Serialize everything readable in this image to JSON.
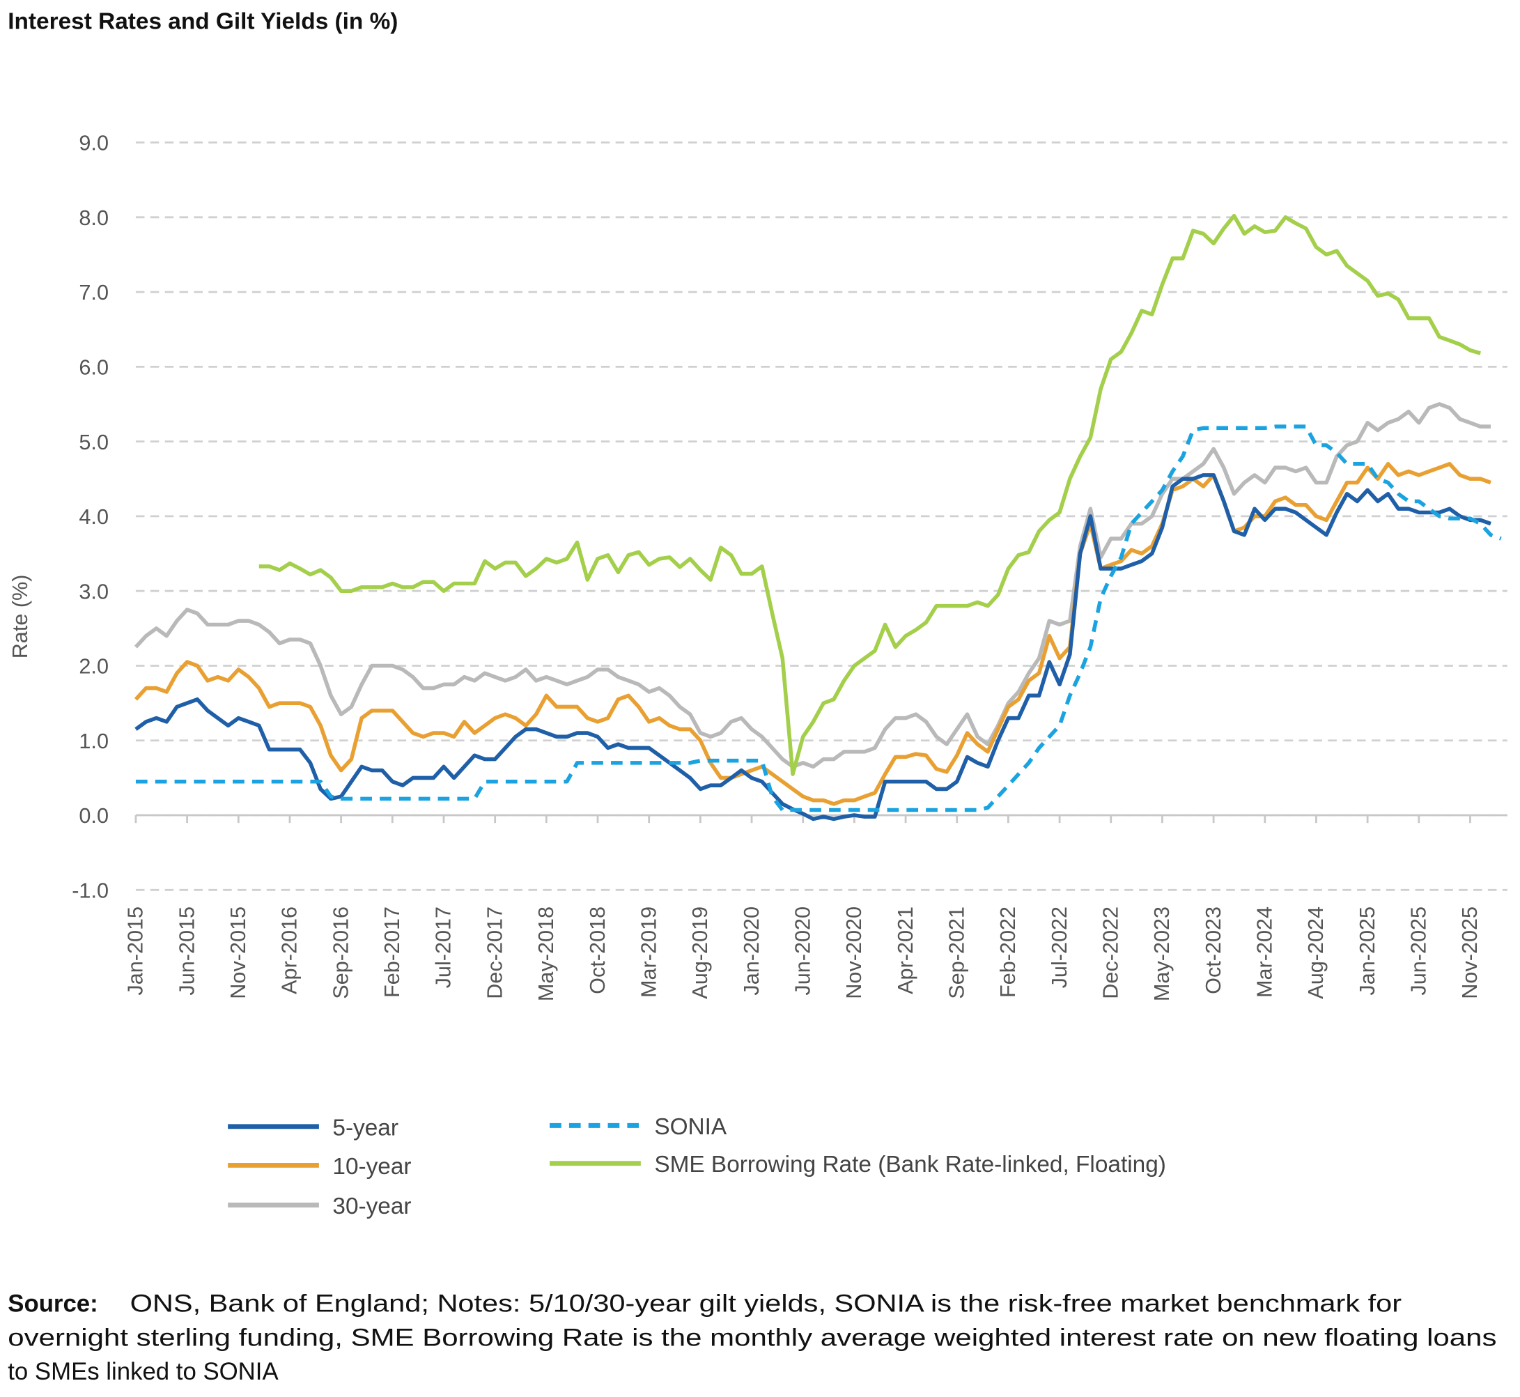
{
  "chart_data": {
    "type": "line",
    "title": "Interest Rates and Gilt Yields (in %)",
    "y_label": "Rate (%)",
    "categories": [
      "Jan-2015",
      null,
      null,
      null,
      null,
      "Jun-2015",
      null,
      null,
      null,
      null,
      "Nov-2015",
      null,
      null,
      null,
      null,
      "Apr-2016",
      null,
      null,
      null,
      null,
      "Sep-2016",
      null,
      null,
      null,
      null,
      "Feb-2017",
      null,
      null,
      null,
      null,
      "Jul-2017",
      null,
      null,
      null,
      null,
      "Dec-2017",
      null,
      null,
      null,
      null,
      "May-2018",
      null,
      null,
      null,
      null,
      "Oct-2018",
      null,
      null,
      null,
      null,
      "Mar-2019",
      null,
      null,
      null,
      null,
      "Aug-2019",
      null,
      null,
      null,
      null,
      "Jan-2020",
      null,
      null,
      null,
      null,
      "Jun-2020",
      null,
      null,
      null,
      null,
      "Nov-2020",
      null,
      null,
      null,
      null,
      "Apr-2021",
      null,
      null,
      null,
      null,
      "Sep-2021",
      null,
      null,
      null,
      null,
      "Feb-2022",
      null,
      null,
      null,
      null,
      "Jul-2022",
      null,
      null,
      null,
      null,
      "Dec-2022",
      null,
      null,
      null,
      null,
      "May-2023",
      null,
      null,
      null,
      null,
      "Oct-2023",
      null,
      null,
      null,
      null,
      "Mar-2024",
      null,
      null,
      null,
      null,
      "Aug-2024",
      null,
      null,
      null,
      null,
      "Jan-2025",
      null,
      null,
      null,
      null,
      "Jun-2025",
      null,
      null,
      null,
      null,
      "Nov-2025",
      null,
      null,
      null
    ],
    "series": [
      {
        "name": "5-year",
        "color": "#1f5fa8",
        "dashed": false,
        "values": [
          1.15,
          1.25,
          1.3,
          1.25,
          1.45,
          1.5,
          1.55,
          1.4,
          1.3,
          1.2,
          1.3,
          1.25,
          1.2,
          0.88,
          0.88,
          0.88,
          0.88,
          0.7,
          0.35,
          0.22,
          0.25,
          0.45,
          0.65,
          0.6,
          0.6,
          0.45,
          0.4,
          0.5,
          0.5,
          0.5,
          0.65,
          0.5,
          0.65,
          0.8,
          0.75,
          0.75,
          0.9,
          1.05,
          1.15,
          1.15,
          1.1,
          1.05,
          1.05,
          1.1,
          1.1,
          1.05,
          0.9,
          0.95,
          0.9,
          0.9,
          0.9,
          0.8,
          0.7,
          0.6,
          0.5,
          0.35,
          0.4,
          0.4,
          0.5,
          0.6,
          0.5,
          0.45,
          0.3,
          0.15,
          0.08,
          0.02,
          -0.05,
          -0.02,
          -0.05,
          -0.02,
          0.0,
          -0.02,
          -0.02,
          0.45,
          0.45,
          0.45,
          0.45,
          0.45,
          0.35,
          0.35,
          0.45,
          0.78,
          0.7,
          0.65,
          1.0,
          1.3,
          1.3,
          1.6,
          1.6,
          2.05,
          1.75,
          2.15,
          3.5,
          4.0,
          3.3,
          3.3,
          3.3,
          3.35,
          3.4,
          3.5,
          3.85,
          4.4,
          4.5,
          4.5,
          4.55,
          4.55,
          4.2,
          3.8,
          3.75,
          4.1,
          3.95,
          4.1,
          4.1,
          4.05,
          3.95,
          3.85,
          3.75,
          4.05,
          4.3,
          4.2,
          4.35,
          4.2,
          4.3,
          4.1,
          4.1,
          4.05,
          4.05,
          4.05,
          4.1,
          4.0,
          3.95,
          3.95,
          3.9,
          null
        ]
      },
      {
        "name": "10-year",
        "color": "#e9a033",
        "dashed": false,
        "values": [
          1.55,
          1.7,
          1.7,
          1.65,
          1.9,
          2.05,
          2.0,
          1.8,
          1.85,
          1.8,
          1.95,
          1.85,
          1.7,
          1.45,
          1.5,
          1.5,
          1.5,
          1.45,
          1.2,
          0.8,
          0.6,
          0.75,
          1.3,
          1.4,
          1.4,
          1.4,
          1.25,
          1.1,
          1.05,
          1.1,
          1.1,
          1.05,
          1.25,
          1.1,
          1.2,
          1.3,
          1.35,
          1.3,
          1.2,
          1.35,
          1.6,
          1.45,
          1.45,
          1.45,
          1.3,
          1.25,
          1.3,
          1.55,
          1.6,
          1.45,
          1.25,
          1.3,
          1.2,
          1.15,
          1.15,
          1.0,
          0.7,
          0.5,
          0.5,
          0.55,
          0.6,
          0.65,
          0.55,
          0.45,
          0.35,
          0.25,
          0.2,
          0.2,
          0.15,
          0.2,
          0.2,
          0.25,
          0.3,
          0.55,
          0.78,
          0.78,
          0.82,
          0.8,
          0.62,
          0.58,
          0.8,
          1.1,
          0.95,
          0.85,
          1.15,
          1.45,
          1.55,
          1.8,
          1.9,
          2.4,
          2.1,
          2.25,
          3.5,
          3.9,
          3.3,
          3.35,
          3.4,
          3.55,
          3.5,
          3.6,
          3.9,
          4.35,
          4.4,
          4.5,
          4.4,
          4.55,
          4.2,
          3.8,
          3.85,
          4.0,
          4.0,
          4.2,
          4.25,
          4.15,
          4.15,
          4.0,
          3.95,
          4.2,
          4.45,
          4.45,
          4.65,
          4.5,
          4.7,
          4.55,
          4.6,
          4.55,
          4.6,
          4.65,
          4.7,
          4.55,
          4.5,
          4.5,
          4.45,
          null
        ]
      },
      {
        "name": "30-year",
        "color": "#b9b9b9",
        "dashed": false,
        "values": [
          2.25,
          2.4,
          2.5,
          2.4,
          2.6,
          2.75,
          2.7,
          2.55,
          2.55,
          2.55,
          2.6,
          2.6,
          2.55,
          2.45,
          2.3,
          2.35,
          2.35,
          2.3,
          2.0,
          1.6,
          1.35,
          1.45,
          1.75,
          2.0,
          2.0,
          2.0,
          1.95,
          1.85,
          1.7,
          1.7,
          1.75,
          1.75,
          1.85,
          1.8,
          1.9,
          1.85,
          1.8,
          1.85,
          1.95,
          1.8,
          1.85,
          1.8,
          1.75,
          1.8,
          1.85,
          1.95,
          1.95,
          1.85,
          1.8,
          1.75,
          1.65,
          1.7,
          1.6,
          1.45,
          1.35,
          1.1,
          1.05,
          1.1,
          1.25,
          1.3,
          1.15,
          1.05,
          0.9,
          0.75,
          0.65,
          0.7,
          0.65,
          0.75,
          0.75,
          0.85,
          0.85,
          0.85,
          0.9,
          1.15,
          1.3,
          1.3,
          1.35,
          1.25,
          1.05,
          0.95,
          1.15,
          1.35,
          1.05,
          0.95,
          1.2,
          1.5,
          1.65,
          1.9,
          2.1,
          2.6,
          2.55,
          2.6,
          3.6,
          4.1,
          3.45,
          3.7,
          3.7,
          3.9,
          3.9,
          4.0,
          4.3,
          4.5,
          4.5,
          4.6,
          4.7,
          4.9,
          4.65,
          4.3,
          4.45,
          4.55,
          4.45,
          4.65,
          4.65,
          4.6,
          4.65,
          4.45,
          4.45,
          4.8,
          4.95,
          5.0,
          5.25,
          5.15,
          5.25,
          5.3,
          5.4,
          5.25,
          5.45,
          5.5,
          5.45,
          5.3,
          5.25,
          5.2,
          5.2,
          null
        ]
      },
      {
        "name": "SONIA",
        "color": "#1aa3e0",
        "dashed": true,
        "values": [
          0.45,
          0.45,
          0.45,
          0.45,
          0.45,
          0.45,
          0.45,
          0.45,
          0.45,
          0.45,
          0.45,
          0.45,
          0.45,
          0.45,
          0.45,
          0.45,
          0.45,
          0.45,
          0.45,
          0.25,
          0.22,
          0.22,
          0.22,
          0.22,
          0.22,
          0.22,
          0.22,
          0.22,
          0.22,
          0.22,
          0.22,
          0.22,
          0.22,
          0.22,
          0.45,
          0.45,
          0.45,
          0.45,
          0.45,
          0.45,
          0.45,
          0.45,
          0.45,
          0.7,
          0.7,
          0.7,
          0.7,
          0.7,
          0.7,
          0.7,
          0.7,
          0.7,
          0.7,
          0.7,
          0.7,
          0.73,
          0.73,
          0.73,
          0.73,
          0.73,
          0.73,
          0.73,
          0.25,
          0.07,
          0.07,
          0.07,
          0.07,
          0.07,
          0.07,
          0.07,
          0.07,
          0.07,
          0.07,
          0.07,
          0.07,
          0.07,
          0.07,
          0.07,
          0.07,
          0.07,
          0.07,
          0.07,
          0.07,
          0.1,
          0.25,
          0.4,
          0.55,
          0.7,
          0.9,
          1.05,
          1.2,
          1.6,
          1.9,
          2.25,
          2.9,
          3.2,
          3.45,
          3.9,
          4.05,
          4.2,
          4.35,
          4.6,
          4.8,
          5.15,
          5.18,
          5.18,
          5.18,
          5.18,
          5.18,
          5.18,
          5.18,
          5.2,
          5.2,
          5.2,
          5.2,
          4.95,
          4.95,
          4.85,
          4.7,
          4.7,
          4.7,
          4.5,
          4.45,
          4.3,
          4.2,
          4.2,
          4.1,
          4.0,
          3.97,
          3.97,
          3.97,
          3.9,
          3.75,
          3.7
        ]
      },
      {
        "name": "SME Borrowing Rate (Bank Rate-linked, Floating)",
        "color": "#a3cf4a",
        "dashed": false,
        "values": [
          null,
          null,
          null,
          null,
          null,
          null,
          null,
          null,
          null,
          null,
          null,
          null,
          3.33,
          3.33,
          3.28,
          3.37,
          3.3,
          3.22,
          3.28,
          3.18,
          3.0,
          3.0,
          3.05,
          3.05,
          3.05,
          3.1,
          3.05,
          3.05,
          3.12,
          3.12,
          3.0,
          3.1,
          3.1,
          3.1,
          3.4,
          3.3,
          3.38,
          3.38,
          3.2,
          3.3,
          3.43,
          3.38,
          3.43,
          3.65,
          3.15,
          3.43,
          3.48,
          3.25,
          3.48,
          3.52,
          3.35,
          3.43,
          3.45,
          3.32,
          3.43,
          3.28,
          3.15,
          3.58,
          3.48,
          3.23,
          3.23,
          3.33,
          2.7,
          2.1,
          0.55,
          1.05,
          1.25,
          1.5,
          1.55,
          1.8,
          2.0,
          2.1,
          2.2,
          2.55,
          2.25,
          2.4,
          2.48,
          2.58,
          2.8,
          2.8,
          2.8,
          2.8,
          2.85,
          2.8,
          2.95,
          3.3,
          3.48,
          3.52,
          3.8,
          3.95,
          4.05,
          4.5,
          4.8,
          5.05,
          5.7,
          6.1,
          6.2,
          6.45,
          6.75,
          6.7,
          7.1,
          7.45,
          7.45,
          7.82,
          7.78,
          7.65,
          7.85,
          8.02,
          7.78,
          7.88,
          7.8,
          7.82,
          8.0,
          7.92,
          7.85,
          7.6,
          7.5,
          7.55,
          7.35,
          7.25,
          7.15,
          6.95,
          6.98,
          6.9,
          6.65,
          6.65,
          6.65,
          6.4,
          6.35,
          6.3,
          6.22,
          6.18,
          null,
          null
        ]
      }
    ],
    "ylim": [
      -1,
      9
    ],
    "yticks": [
      {
        "value": -1,
        "label": "-1.0"
      },
      {
        "value": 0,
        "label": "0.0"
      },
      {
        "value": 1,
        "label": "1.0"
      },
      {
        "value": 2,
        "label": "2.0"
      },
      {
        "value": 3,
        "label": "3.0"
      },
      {
        "value": 4,
        "label": "4.0"
      },
      {
        "value": 5,
        "label": "5.0"
      },
      {
        "value": 6,
        "label": "6.0"
      },
      {
        "value": 7,
        "label": "7.0"
      },
      {
        "value": 8,
        "label": "8.0"
      },
      {
        "value": 9,
        "label": "9.0"
      }
    ],
    "grid": true,
    "source": {
      "label": "Source:",
      "lines": [
        "ONS, Bank of England; Notes: 5/10/30-year gilt yields, SONIA is the risk-free market benchmark for",
        "overnight sterling funding, SME Borrowing Rate is the monthly average weighted interest rate on new floating loans",
        "to SMEs linked to SONIA"
      ]
    }
  }
}
